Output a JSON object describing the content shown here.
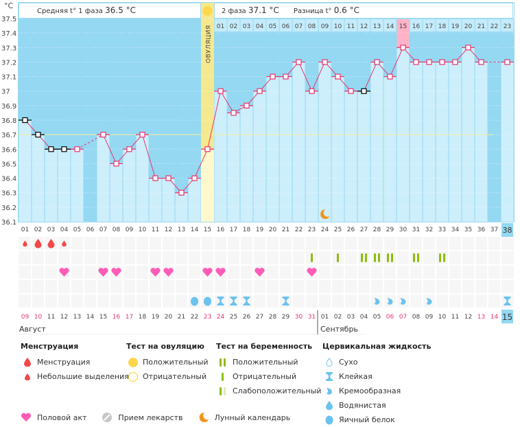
{
  "header": {
    "unit": "°C",
    "phase1_label": "Средняя t° 1 фаза",
    "phase1_value": "36.5 °C",
    "phase2_label": "2 фаза",
    "phase2_value": "37.1 °C",
    "diff_label": "Разница t°",
    "diff_value": "0.6 °C",
    "ovulation_label": "ОВУЛЯЦИЯ"
  },
  "chart_data": {
    "type": "line",
    "title": "",
    "ylabel": "°C",
    "ylim": [
      36.1,
      37.5
    ],
    "yticks": [
      "37.5",
      "37.4",
      "37.3",
      "37.2",
      "37.1",
      "37",
      "36.9",
      "36.8",
      "36.7",
      "36.6",
      "36.5",
      "36.4",
      "36.3",
      "36.2",
      "36.1"
    ],
    "cover_line": 36.7,
    "ovulation_day": 15,
    "highlight_post_ovulation_day": 15,
    "cycle_days": [
      "01",
      "02",
      "03",
      "04",
      "05",
      "06",
      "07",
      "08",
      "09",
      "10",
      "11",
      "12",
      "13",
      "14",
      "15",
      "16",
      "17",
      "18",
      "19",
      "20",
      "21",
      "22",
      "23",
      "24",
      "25",
      "26",
      "27",
      "28",
      "29",
      "30",
      "31",
      "32",
      "33",
      "34",
      "35",
      "36",
      "37",
      "38"
    ],
    "current_day": 38,
    "post_ovulation_days": [
      "01",
      "02",
      "03",
      "04",
      "05",
      "06",
      "07",
      "08",
      "09",
      "10",
      "11",
      "12",
      "13",
      "14",
      "15",
      "16",
      "17",
      "18",
      "19",
      "20",
      "21",
      "22",
      "23"
    ],
    "series": [
      {
        "name": "Базальная температура",
        "values": [
          36.8,
          36.7,
          36.6,
          36.6,
          36.6,
          null,
          36.7,
          36.5,
          36.6,
          36.7,
          36.4,
          36.4,
          36.3,
          36.4,
          36.6,
          37.0,
          36.85,
          36.9,
          37.0,
          37.1,
          37.1,
          37.2,
          37.0,
          37.2,
          37.1,
          37.0,
          37.0,
          37.2,
          37.1,
          37.3,
          37.2,
          37.2,
          37.2,
          37.2,
          37.3,
          37.2,
          null,
          37.2
        ],
        "excluded_days": [
          1,
          2,
          3,
          4,
          27
        ]
      }
    ],
    "moon_day": 24
  },
  "calendar": {
    "dates": [
      "09",
      "10",
      "11",
      "12",
      "13",
      "14",
      "15",
      "16",
      "17",
      "18",
      "19",
      "20",
      "21",
      "22",
      "23",
      "24",
      "25",
      "26",
      "27",
      "28",
      "29",
      "30",
      "31",
      "01",
      "02",
      "03",
      "04",
      "05",
      "06",
      "07",
      "08",
      "09",
      "10",
      "11",
      "12",
      "13",
      "14",
      "15"
    ],
    "weekend_indexes": [
      0,
      1,
      7,
      8,
      14,
      15,
      21,
      22,
      28,
      29,
      35,
      36
    ],
    "today_index": 37,
    "month1": "Август",
    "month2": "Сентябрь",
    "menstruation": [
      {
        "day": 1,
        "type": "light"
      },
      {
        "day": 2,
        "type": "heavy"
      },
      {
        "day": 3,
        "type": "heavy"
      },
      {
        "day": 4,
        "type": "light"
      }
    ],
    "pregnancy_tests": [
      {
        "day": 23,
        "type": "negative"
      },
      {
        "day": 25,
        "type": "negative"
      },
      {
        "day": 27,
        "type": "positive"
      },
      {
        "day": 28,
        "type": "positive"
      },
      {
        "day": 29,
        "type": "positive"
      },
      {
        "day": 31,
        "type": "positive"
      },
      {
        "day": 33,
        "type": "positive"
      }
    ],
    "intercourse": [
      4,
      7,
      8,
      11,
      12,
      15,
      16,
      19,
      23
    ],
    "cervical_fluid": [
      {
        "day": 14,
        "type": "eggwhite"
      },
      {
        "day": 15,
        "type": "eggwhite"
      },
      {
        "day": 16,
        "type": "sticky"
      },
      {
        "day": 17,
        "type": "sticky"
      },
      {
        "day": 18,
        "type": "sticky"
      },
      {
        "day": 21,
        "type": "sticky"
      },
      {
        "day": 28,
        "type": "creamy"
      },
      {
        "day": 29,
        "type": "creamy"
      },
      {
        "day": 30,
        "type": "creamy"
      },
      {
        "day": 32,
        "type": "creamy"
      },
      {
        "day": 38,
        "type": "sticky"
      }
    ]
  },
  "legend": {
    "menstruation": {
      "title": "Менструация",
      "items": [
        "Менструация",
        "Небольшие выделения"
      ]
    },
    "ovulation_test": {
      "title": "Тест на овуляцию",
      "items": [
        "Положительный",
        "Отрицательный"
      ]
    },
    "pregnancy_test": {
      "title": "Тест на беременность",
      "items": [
        "Положительный",
        "Отрицательный",
        "Слабоположительный"
      ]
    },
    "cervical_fluid": {
      "title": "Цервикальная жидкость",
      "items": [
        "Сухо",
        "Клейкая",
        "Кремообразная",
        "Водянистая",
        "Яичный белок"
      ]
    },
    "other": [
      "Половой акт",
      "Прием лекарств",
      "Лунный календарь"
    ]
  },
  "colors": {
    "bg_dark": "#94d8f2",
    "bar_light": "#cdeefb",
    "ovulation": "#f5e88e",
    "line": "#e8336b",
    "pink_highlight": "#ffb3c6",
    "blood": "#f24848",
    "heart": "#ff5cb8",
    "test_green": "#8dbd0c",
    "fluid_blue": "#6cc2ee",
    "moon": "#f29418",
    "weekend_text": "#e8336b"
  }
}
